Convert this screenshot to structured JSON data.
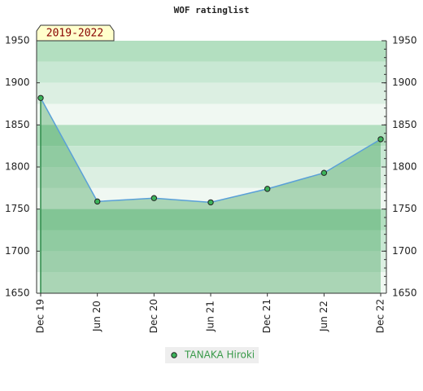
{
  "chart_data": {
    "type": "line",
    "title": "WOF ratinglist",
    "annotation": "2019-2022",
    "categories": [
      "Dec 19",
      "Jun 20",
      "Dec 20",
      "Jun 21",
      "Dec 21",
      "Jun 22",
      "Dec 22"
    ],
    "series": [
      {
        "name": "TANAKA Hiroki",
        "color": "#5aa0d8",
        "values": [
          1882,
          1759,
          1763,
          1758,
          1774,
          1793,
          1833
        ]
      }
    ],
    "ylim": [
      1650,
      1950
    ],
    "yticks": [
      1650,
      1700,
      1750,
      1800,
      1850,
      1900,
      1950
    ],
    "grid": false
  }
}
